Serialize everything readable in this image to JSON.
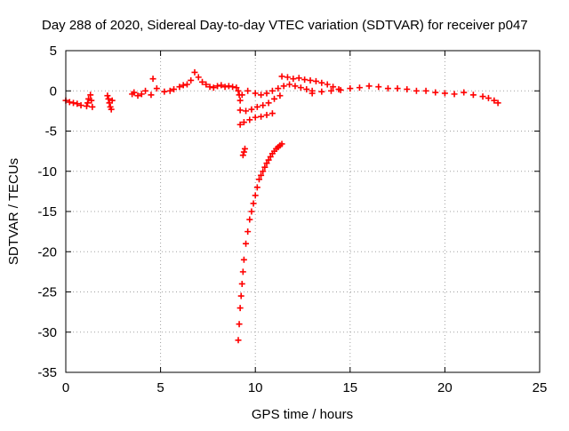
{
  "chart_data": {
    "type": "scatter",
    "title": "Day 288 of 2020, Sidereal Day-to-day VTEC variation (SDTVAR) for receiver p047",
    "xlabel": "GPS time / hours",
    "ylabel": "SDTVAR / TECUs",
    "xlim": [
      0,
      25
    ],
    "ylim": [
      -35,
      5
    ],
    "xticks": [
      "0",
      "5",
      "10",
      "15",
      "20",
      "25"
    ],
    "yticks": [
      "5",
      "0",
      "-5",
      "-10",
      "-15",
      "-20",
      "-25",
      "-30",
      "-35"
    ],
    "grid": true,
    "marker": "+",
    "legend": "none",
    "series": [
      {
        "name": "SDTVAR",
        "color": "#ff0000",
        "x": [
          0.0,
          0.2,
          0.4,
          0.6,
          0.8,
          1.1,
          1.15,
          1.2,
          1.3,
          1.35,
          1.4,
          2.2,
          2.25,
          2.3,
          2.35,
          2.4,
          2.45,
          3.5,
          3.6,
          3.8,
          4.0,
          4.2,
          4.5,
          4.6,
          4.8,
          5.2,
          5.5,
          5.7,
          6.0,
          6.2,
          6.4,
          6.6,
          6.8,
          7.0,
          7.2,
          7.4,
          7.6,
          7.8,
          8.0,
          8.2,
          8.4,
          8.6,
          8.8,
          9.0,
          9.1,
          9.15,
          9.2,
          9.3,
          9.6,
          9.2,
          9.5,
          9.8,
          10.1,
          10.4,
          10.7,
          11.0,
          11.3,
          9.2,
          9.4,
          9.7,
          10.0,
          10.3,
          10.6,
          10.9,
          9.35,
          9.4,
          9.45,
          9.1,
          9.15,
          9.2,
          9.25,
          9.3,
          9.35,
          9.4,
          9.5,
          9.6,
          9.7,
          9.8,
          9.9,
          10.0,
          10.1,
          10.2,
          10.3,
          10.4,
          10.5,
          10.6,
          10.7,
          10.8,
          10.9,
          11.0,
          11.1,
          11.2,
          11.3,
          11.4,
          10.0,
          10.3,
          10.6,
          10.9,
          11.2,
          11.5,
          11.8,
          12.1,
          12.4,
          12.7,
          13.0,
          11.4,
          11.7,
          12.0,
          12.3,
          12.6,
          12.9,
          13.2,
          13.5,
          13.8,
          14.1,
          14.4,
          13.0,
          13.5,
          14.0,
          14.5,
          15.0,
          15.5,
          16.0,
          16.5,
          17.0,
          17.5,
          18.0,
          18.5,
          19.0,
          19.5,
          20.0,
          20.5,
          21.0,
          21.5,
          22.0,
          22.3,
          22.6,
          22.8
        ],
        "y": [
          -1.2,
          -1.4,
          -1.5,
          -1.6,
          -1.8,
          -1.9,
          -1.5,
          -1.0,
          -0.5,
          -1.2,
          -2.0,
          -0.6,
          -1.0,
          -1.5,
          -2.0,
          -2.3,
          -1.2,
          -0.4,
          -0.2,
          -0.6,
          -0.4,
          0.0,
          -0.5,
          1.5,
          0.3,
          -0.1,
          0.0,
          0.2,
          0.5,
          0.7,
          0.8,
          1.3,
          2.3,
          1.7,
          1.1,
          0.8,
          0.5,
          0.4,
          0.6,
          0.7,
          0.5,
          0.6,
          0.5,
          0.4,
          0.0,
          -0.5,
          -1.2,
          -0.5,
          0.0,
          -2.4,
          -2.5,
          -2.3,
          -2.0,
          -1.8,
          -1.5,
          -1.0,
          -0.6,
          -4.2,
          -3.9,
          -3.6,
          -3.3,
          -3.2,
          -3.0,
          -2.8,
          -8.0,
          -7.6,
          -7.2,
          -31.0,
          -29.0,
          -27.0,
          -25.5,
          -24.0,
          -22.5,
          -21.0,
          -19.0,
          -17.5,
          -16.0,
          -15.0,
          -14.0,
          -13.0,
          -12.0,
          -11.0,
          -10.5,
          -10.0,
          -9.5,
          -9.0,
          -8.6,
          -8.2,
          -7.8,
          -7.5,
          -7.2,
          -7.0,
          -6.8,
          -6.6,
          -0.3,
          -0.5,
          -0.3,
          0.0,
          0.3,
          0.6,
          0.8,
          0.6,
          0.4,
          0.2,
          0.0,
          1.8,
          1.7,
          1.5,
          1.6,
          1.4,
          1.3,
          1.2,
          1.0,
          0.8,
          0.5,
          0.2,
          -0.3,
          -0.1,
          0.0,
          0.1,
          0.3,
          0.4,
          0.6,
          0.5,
          0.3,
          0.3,
          0.2,
          0.0,
          0.0,
          -0.2,
          -0.3,
          -0.4,
          -0.2,
          -0.5,
          -0.7,
          -0.9,
          -1.2,
          -1.5
        ]
      }
    ]
  }
}
